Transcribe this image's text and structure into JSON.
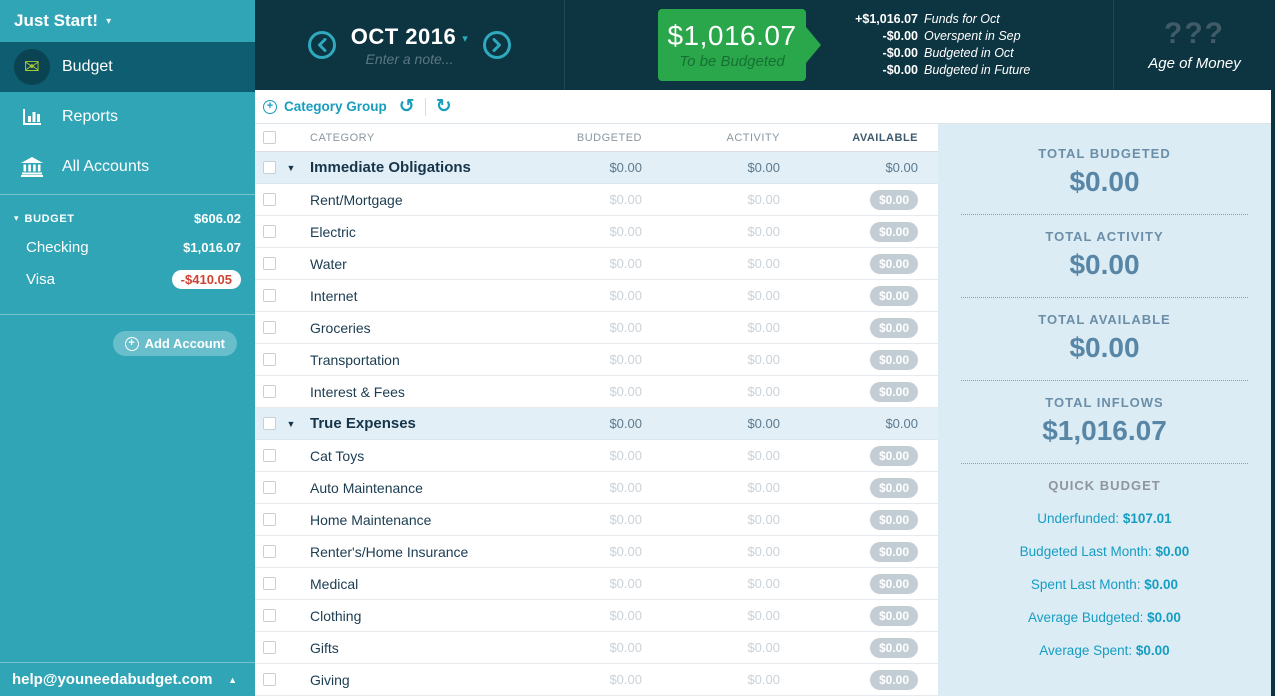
{
  "sidebar": {
    "title": "Just Start!",
    "nav": [
      {
        "label": "Budget"
      },
      {
        "label": "Reports"
      },
      {
        "label": "All Accounts"
      }
    ],
    "budget_group": {
      "label": "BUDGET",
      "total": "$606.02"
    },
    "accounts": [
      {
        "name": "Checking",
        "balance": "$1,016.07"
      },
      {
        "name": "Visa",
        "balance": "-$410.05"
      }
    ],
    "add_account_label": "Add Account",
    "footer_email": "help@youneedabudget.com"
  },
  "header": {
    "month": "OCT 2016",
    "note_placeholder": "Enter a note...",
    "to_be_budgeted": {
      "amount": "$1,016.07",
      "label": "To be Budgeted"
    },
    "breakdown": [
      {
        "amount": "+$1,016.07",
        "label": "Funds for Oct"
      },
      {
        "amount": "-$0.00",
        "label": "Overspent in Sep"
      },
      {
        "amount": "-$0.00",
        "label": "Budgeted in Oct"
      },
      {
        "amount": "-$0.00",
        "label": "Budgeted in Future"
      }
    ],
    "age_of_money": {
      "value": "???",
      "label": "Age of Money"
    }
  },
  "toolbar": {
    "category_group_label": "Category Group"
  },
  "table": {
    "columns": [
      "CATEGORY",
      "BUDGETED",
      "ACTIVITY",
      "AVAILABLE"
    ],
    "rows": [
      {
        "type": "group",
        "name": "Immediate Obligations",
        "budgeted": "$0.00",
        "activity": "$0.00",
        "available": "$0.00"
      },
      {
        "type": "category",
        "name": "Rent/Mortgage",
        "budgeted": "$0.00",
        "activity": "$0.00",
        "available": "$0.00"
      },
      {
        "type": "category",
        "name": "Electric",
        "budgeted": "$0.00",
        "activity": "$0.00",
        "available": "$0.00"
      },
      {
        "type": "category",
        "name": "Water",
        "budgeted": "$0.00",
        "activity": "$0.00",
        "available": "$0.00"
      },
      {
        "type": "category",
        "name": "Internet",
        "budgeted": "$0.00",
        "activity": "$0.00",
        "available": "$0.00"
      },
      {
        "type": "category",
        "name": "Groceries",
        "budgeted": "$0.00",
        "activity": "$0.00",
        "available": "$0.00"
      },
      {
        "type": "category",
        "name": "Transportation",
        "budgeted": "$0.00",
        "activity": "$0.00",
        "available": "$0.00"
      },
      {
        "type": "category",
        "name": "Interest & Fees",
        "budgeted": "$0.00",
        "activity": "$0.00",
        "available": "$0.00"
      },
      {
        "type": "group",
        "name": "True Expenses",
        "budgeted": "$0.00",
        "activity": "$0.00",
        "available": "$0.00"
      },
      {
        "type": "category",
        "name": "Cat Toys",
        "budgeted": "$0.00",
        "activity": "$0.00",
        "available": "$0.00"
      },
      {
        "type": "category",
        "name": "Auto Maintenance",
        "budgeted": "$0.00",
        "activity": "$0.00",
        "available": "$0.00"
      },
      {
        "type": "category",
        "name": "Home Maintenance",
        "budgeted": "$0.00",
        "activity": "$0.00",
        "available": "$0.00"
      },
      {
        "type": "category",
        "name": "Renter's/Home Insurance",
        "budgeted": "$0.00",
        "activity": "$0.00",
        "available": "$0.00"
      },
      {
        "type": "category",
        "name": "Medical",
        "budgeted": "$0.00",
        "activity": "$0.00",
        "available": "$0.00"
      },
      {
        "type": "category",
        "name": "Clothing",
        "budgeted": "$0.00",
        "activity": "$0.00",
        "available": "$0.00"
      },
      {
        "type": "category",
        "name": "Gifts",
        "budgeted": "$0.00",
        "activity": "$0.00",
        "available": "$0.00"
      },
      {
        "type": "category",
        "name": "Giving",
        "budgeted": "$0.00",
        "activity": "$0.00",
        "available": "$0.00"
      }
    ]
  },
  "summary": {
    "totals": [
      {
        "label": "TOTAL BUDGETED",
        "value": "$0.00"
      },
      {
        "label": "TOTAL ACTIVITY",
        "value": "$0.00"
      },
      {
        "label": "TOTAL AVAILABLE",
        "value": "$0.00"
      },
      {
        "label": "TOTAL INFLOWS",
        "value": "$1,016.07"
      }
    ],
    "quick_budget": {
      "title": "QUICK BUDGET",
      "items": [
        {
          "label": "Underfunded:",
          "value": "$107.01"
        },
        {
          "label": "Budgeted Last Month:",
          "value": "$0.00"
        },
        {
          "label": "Spent Last Month:",
          "value": "$0.00"
        },
        {
          "label": "Average Budgeted:",
          "value": "$0.00"
        },
        {
          "label": "Average Spent:",
          "value": "$0.00"
        }
      ]
    }
  },
  "colors": {
    "sidebar_teal": "#2fa5b6",
    "active_nav_teal": "#0f5d70",
    "header_navy": "#0d3441",
    "accent_teal": "#189dbf",
    "positive_green": "#2aa74a",
    "negative_red": "#cd4335",
    "panel_blue": "#dcecf5"
  }
}
